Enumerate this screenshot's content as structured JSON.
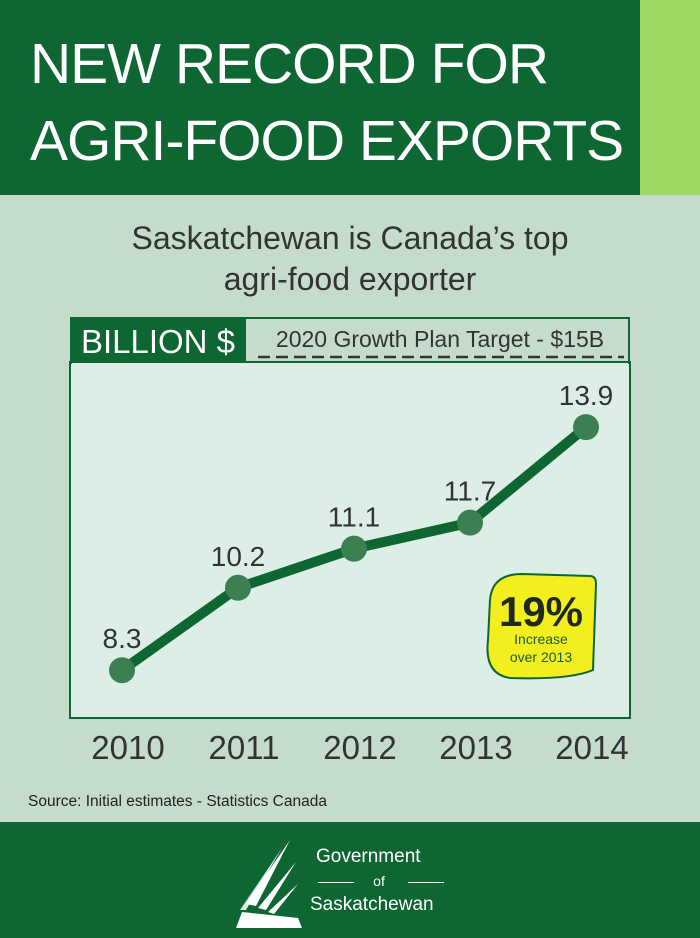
{
  "header": {
    "title_line1": "NEW RECORD FOR",
    "title_line2": "AGRI-FOOD EXPORTS",
    "colors": {
      "background": "#0e6633",
      "accent": "#9dd863"
    }
  },
  "subtitle": {
    "line1": "Saskatchewan is Canada’s top",
    "line2": "agri-food exporter"
  },
  "chart_data": {
    "type": "line",
    "ylabel": "BILLION $",
    "x": [
      "2010",
      "2011",
      "2012",
      "2013",
      "2014"
    ],
    "series": [
      {
        "values": [
          8.3,
          10.2,
          11.1,
          11.7,
          13.9
        ],
        "labels": [
          "8.3",
          "10.2",
          "11.1",
          "11.7",
          "13.9"
        ]
      }
    ],
    "target_line": {
      "label": "2020 Growth Plan Target - $15B",
      "value": 15
    },
    "ylim": [
      7.2,
      15.4
    ],
    "grid": false,
    "annotation": {
      "headline": "19%",
      "line1": "Increase",
      "line2": "over 2013"
    },
    "colors": {
      "line": "#0e6633",
      "marker": "#3c7f52",
      "badge": "#f3ef1f",
      "plot_bg": "#dceee5"
    }
  },
  "source": "Source: Initial estimates - Statistics Canada",
  "footer": {
    "line1": "Government",
    "line2": "of",
    "line3": "Saskatchewan",
    "logo_icon": "wheat-sheaf-logo-icon"
  }
}
